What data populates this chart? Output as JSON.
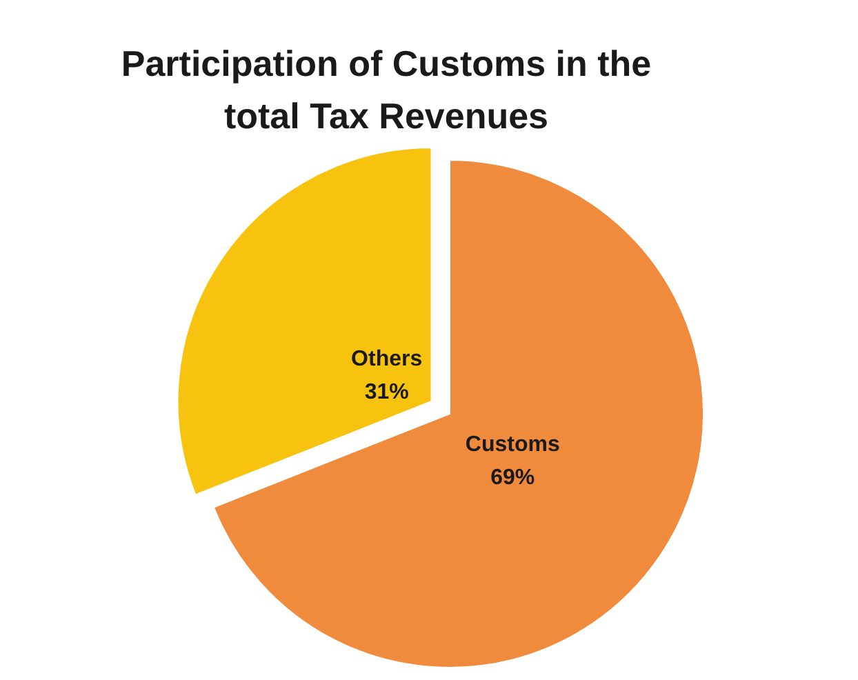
{
  "chart_data": {
    "type": "pie",
    "title": "Participation of Customs in the total Tax Revenues",
    "categories": [
      "Customs",
      "Others"
    ],
    "values": [
      69,
      31
    ],
    "colors": [
      "#f08a3c",
      "#f8c30f"
    ],
    "value_labels": [
      "69%",
      "31%"
    ]
  }
}
